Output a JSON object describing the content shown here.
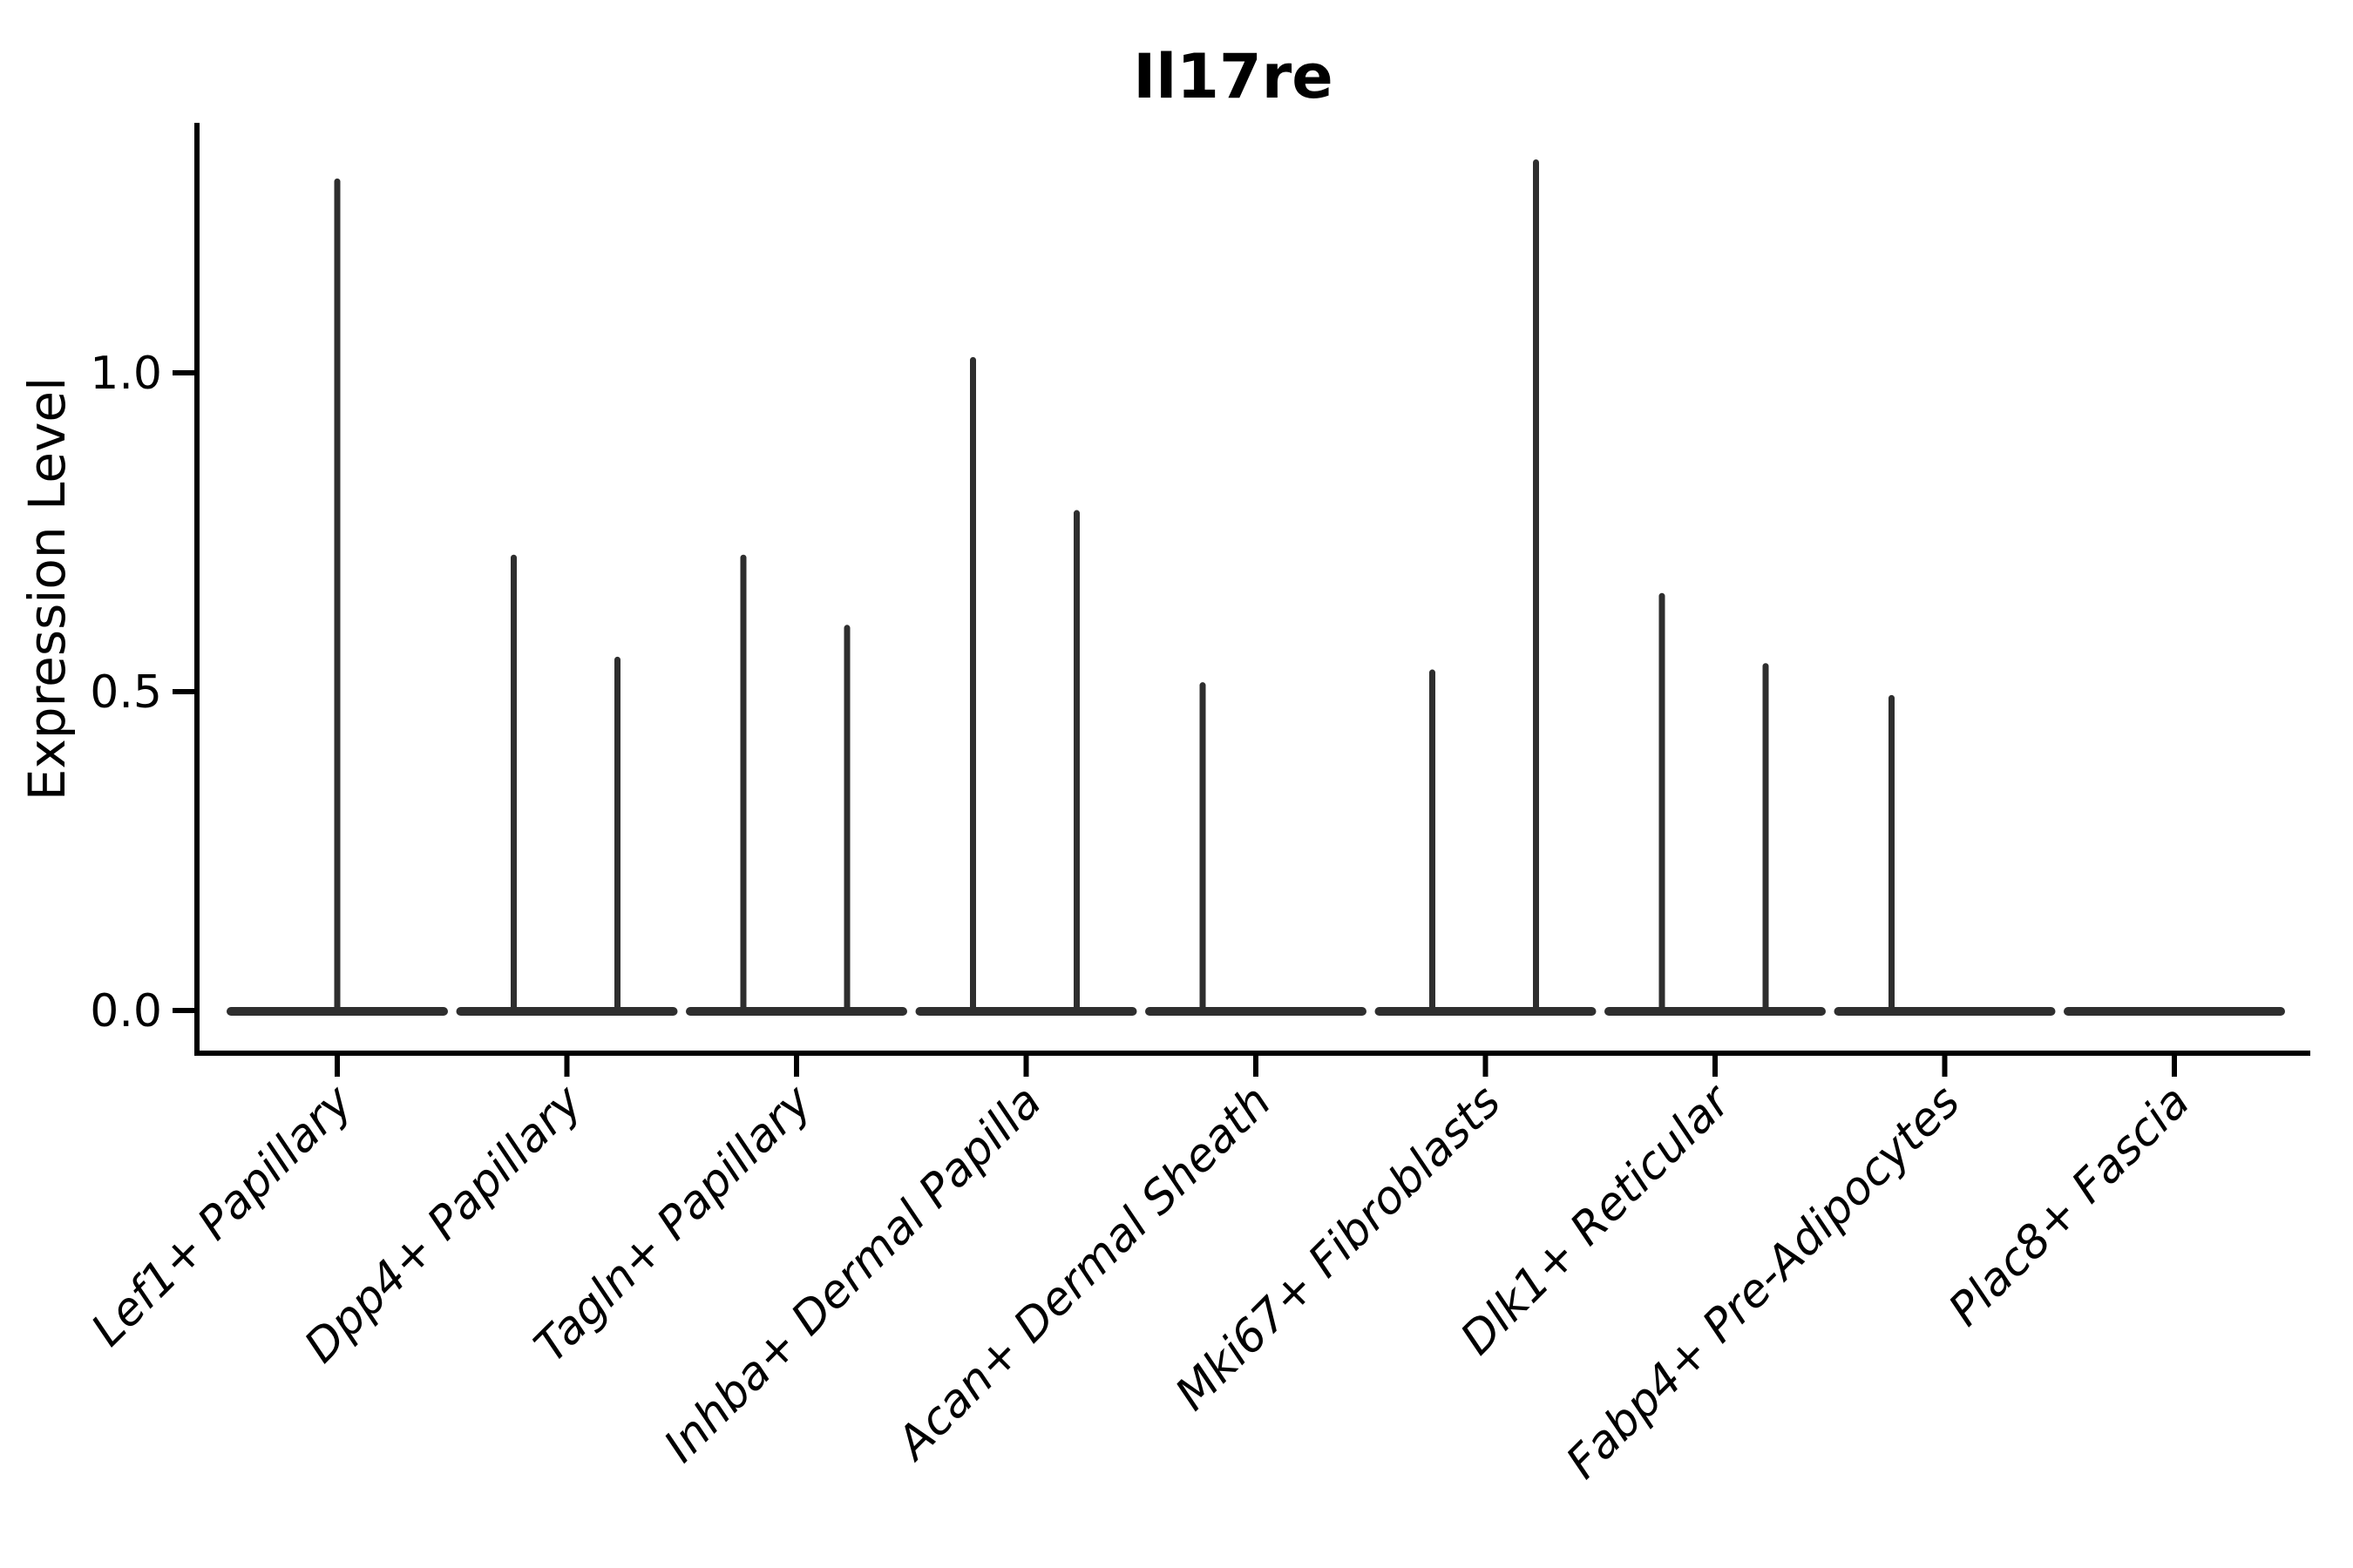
{
  "chart_data": {
    "type": "violin",
    "title": "Il17re",
    "xlabel": "",
    "ylabel": "Expression Level",
    "yticks": [
      {
        "label": "0.0",
        "value": 0.0
      },
      {
        "label": "0.5",
        "value": 0.5
      },
      {
        "label": "1.0",
        "value": 1.0
      }
    ],
    "ylim": [
      -0.07,
      1.39
    ],
    "grid": false,
    "legend": "none",
    "x_label_rotation_deg": 45,
    "x_labels_italic": true,
    "categories": [
      "Lef1+ Papillary",
      "Dpp4+ Papillary",
      "Tagln+ Papillary",
      "Inhba+ Dermal Papilla",
      "Acan+ Dermal Sheath",
      "Mki67+ Fibroblasts",
      "Dlk1+ Reticular",
      "Fabp4+ Pre-Adipocytes",
      "Plac8+ Fascia"
    ],
    "violins": [
      {
        "category": "Lef1+ Papillary",
        "spikes": [
          {
            "side": "center",
            "max": 1.3
          }
        ]
      },
      {
        "category": "Dpp4+ Papillary",
        "spikes": [
          {
            "side": "left",
            "max": 0.71
          },
          {
            "side": "right",
            "max": 0.55
          }
        ]
      },
      {
        "category": "Tagln+ Papillary",
        "spikes": [
          {
            "side": "left",
            "max": 0.71
          },
          {
            "side": "right",
            "max": 0.6
          }
        ]
      },
      {
        "category": "Inhba+ Dermal Papilla",
        "spikes": [
          {
            "side": "left",
            "max": 1.02
          },
          {
            "side": "right",
            "max": 0.78
          }
        ]
      },
      {
        "category": "Acan+ Dermal Sheath",
        "spikes": [
          {
            "side": "left",
            "max": 0.51
          }
        ]
      },
      {
        "category": "Mki67+ Fibroblasts",
        "spikes": [
          {
            "side": "left",
            "max": 0.53
          },
          {
            "side": "right",
            "max": 1.33
          }
        ]
      },
      {
        "category": "Dlk1+ Reticular",
        "spikes": [
          {
            "side": "left",
            "max": 0.65
          },
          {
            "side": "right",
            "max": 0.54
          }
        ]
      },
      {
        "category": "Fabp4+ Pre-Adipocytes",
        "spikes": [
          {
            "side": "left",
            "max": 0.49
          }
        ]
      },
      {
        "category": "Plac8+ Fascia",
        "spikes": []
      }
    ],
    "colors": {
      "violin": "#2e2e2e",
      "axis": "#000000",
      "text": "#000000",
      "background": "#ffffff"
    }
  }
}
